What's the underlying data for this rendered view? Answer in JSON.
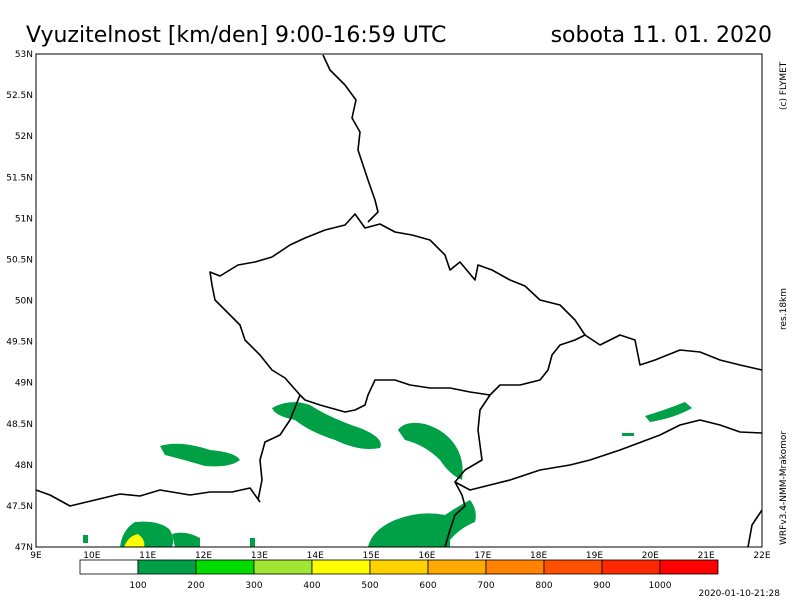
{
  "header": {
    "title": "Vyuzitelnost [km/den] 9:00-16:59 UTC",
    "date": "sobota 11. 01. 2020"
  },
  "map": {
    "latitudes": [
      "53N",
      "52.5N",
      "52N",
      "51.5N",
      "51N",
      "50.5N",
      "50N",
      "49.5N",
      "49N",
      "48.5N",
      "48N",
      "47.5N",
      "47N"
    ],
    "longitudes": [
      "9E",
      "10E",
      "11E",
      "12E",
      "13E",
      "14E",
      "15E",
      "16E",
      "17E",
      "18E",
      "19E",
      "20E",
      "21E",
      "22E"
    ]
  },
  "side_notes": {
    "copyright": "(c) FLYMET",
    "resolution": "res.18km",
    "model": "WRFv3.4-NMM-Mrakomor"
  },
  "colorbar": {
    "colors": [
      "#ffffff",
      "#00a046",
      "#00dc00",
      "#a0e632",
      "#ffff00",
      "#ffd200",
      "#ffaa00",
      "#ff8200",
      "#ff5000",
      "#ff2800",
      "#ff0000"
    ],
    "labels": [
      "100",
      "200",
      "300",
      "400",
      "500",
      "600",
      "700",
      "800",
      "900",
      "1000"
    ]
  },
  "timestamp": "2020-01-10-21:28"
}
